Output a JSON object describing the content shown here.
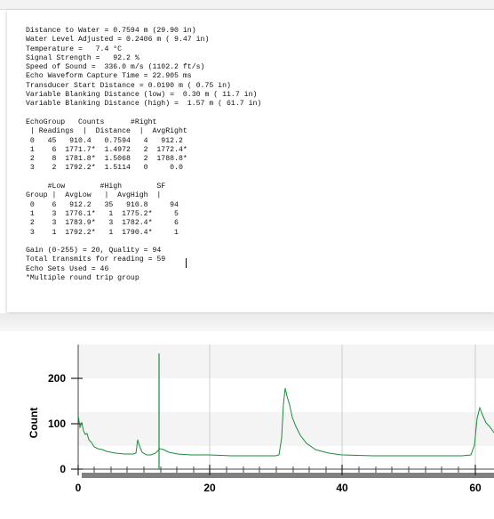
{
  "report": {
    "lines": [
      "Distance to Water = 0.7594 m (29.90 in)",
      "Water Level Adjusted = 0.2406 m ( 9.47 in)",
      "Temperature =   7.4 °C",
      "Signal Strength =   92.2 %",
      "Speed of Sound =  336.0 m/s (1102.2 ft/s)",
      "Echo Waveform Capture Time = 22.905 ms",
      "Transducer Start Distance = 0.0190 m ( 0.75 in)",
      "Variable Blanking Distance (low) =  0.30 m ( 11.7 in)",
      "Variable Blanking Distance (high) =  1.57 m ( 61.7 in)",
      "",
      "EchoGroup   Counts      #Right",
      " | Readings  |  Distance  |  AvgRight",
      " 0   45   910.4   0.7594   4   912.2",
      " 1    6  1771.7*  1.4972   2  1772.4*",
      " 2    8  1781.8*  1.5068   2  1788.8*",
      " 3    2  1792.2*  1.5114   0     0.0",
      "",
      "     #Low        #High        SF",
      "Group |  AvgLow   |  AvgHigh  |",
      " 0    6   912.2   35   910.8     94",
      " 1    3  1776.1*   1  1775.2*     5",
      " 2    3  1783.9*   3  1782.4*     6",
      " 3    1  1792.2*   1  1790.4*     1",
      "",
      "Gain (0-255) = 20, Quality = 94",
      "Total transmits for reading = 59",
      "Echo Sets Used = 46",
      "*Multiple round trip group"
    ]
  },
  "chart": {
    "ylabel": "Count",
    "x_ticks": [
      "0",
      "20",
      "40",
      "60"
    ],
    "y_ticks": [
      "0",
      "100",
      "200"
    ]
  },
  "colors": {
    "waveform": "#1a8c3a",
    "baseline": "#808080",
    "grid": "#cccccc"
  }
}
